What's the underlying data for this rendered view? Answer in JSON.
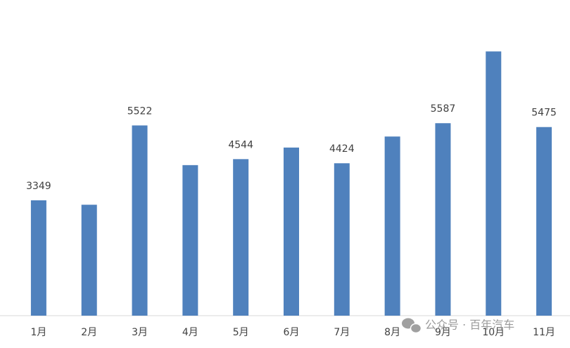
{
  "chart_data": {
    "type": "bar",
    "categories": [
      "1月",
      "2月",
      "3月",
      "4月",
      "5月",
      "6月",
      "7月",
      "8月",
      "9月",
      "10月",
      "11月"
    ],
    "values": [
      3349,
      3220,
      5522,
      4370,
      4544,
      4880,
      4424,
      5200,
      5587,
      7670,
      5475
    ],
    "value_labels": [
      "3349",
      null,
      "5522",
      null,
      "4544",
      null,
      "4424",
      null,
      "5587",
      null,
      "5475"
    ],
    "color": "#4f81bd",
    "ylim": [
      0,
      9000
    ],
    "watermark": "公众号 · 百年汽车"
  }
}
